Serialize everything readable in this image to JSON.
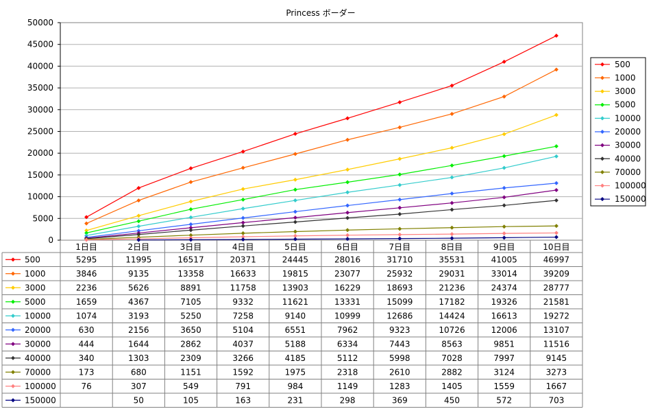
{
  "chart_data": {
    "type": "line",
    "title": "Princess ボーダー",
    "xlabel": "",
    "ylabel": "",
    "ylim": [
      0,
      50000
    ],
    "yticks": [
      0,
      5000,
      10000,
      15000,
      20000,
      25000,
      30000,
      35000,
      40000,
      45000,
      50000
    ],
    "grid": true,
    "legend_position": "right",
    "categories": [
      "1日目",
      "2日目",
      "3日目",
      "4日目",
      "5日目",
      "6日目",
      "7日目",
      "8日目",
      "9日目",
      "10日目"
    ],
    "series": [
      {
        "name": "500",
        "color": "#ff0000",
        "values": [
          5295,
          11995,
          16517,
          20371,
          24445,
          28016,
          31710,
          35531,
          41005,
          46997
        ]
      },
      {
        "name": "1000",
        "color": "#ff6600",
        "values": [
          3846,
          9135,
          13358,
          16633,
          19815,
          23077,
          25932,
          29031,
          33014,
          39209
        ]
      },
      {
        "name": "3000",
        "color": "#ffcc00",
        "values": [
          2236,
          5626,
          8891,
          11758,
          13903,
          16229,
          18693,
          21236,
          24374,
          28777
        ]
      },
      {
        "name": "5000",
        "color": "#00ee00",
        "values": [
          1659,
          4367,
          7105,
          9332,
          11621,
          13331,
          15099,
          17182,
          19326,
          21581
        ]
      },
      {
        "name": "10000",
        "color": "#33cccc",
        "values": [
          1074,
          3193,
          5250,
          7258,
          9140,
          10999,
          12686,
          14424,
          16613,
          19272
        ]
      },
      {
        "name": "20000",
        "color": "#3366ff",
        "values": [
          630,
          2156,
          3650,
          5104,
          6551,
          7962,
          9323,
          10726,
          12006,
          13107
        ]
      },
      {
        "name": "30000",
        "color": "#800080",
        "values": [
          444,
          1644,
          2862,
          4037,
          5188,
          6334,
          7443,
          8563,
          9851,
          11516
        ]
      },
      {
        "name": "40000",
        "color": "#333333",
        "values": [
          340,
          1303,
          2309,
          3266,
          4185,
          5112,
          5998,
          7028,
          7997,
          9145
        ]
      },
      {
        "name": "70000",
        "color": "#808000",
        "values": [
          173,
          680,
          1151,
          1592,
          1975,
          2318,
          2610,
          2882,
          3124,
          3273
        ]
      },
      {
        "name": "100000",
        "color": "#ff8080",
        "values": [
          76,
          307,
          549,
          791,
          984,
          1149,
          1283,
          1405,
          1559,
          1667
        ]
      },
      {
        "name": "150000",
        "color": "#000080",
        "values": [
          null,
          50,
          105,
          163,
          231,
          298,
          369,
          450,
          572,
          703
        ]
      }
    ]
  }
}
